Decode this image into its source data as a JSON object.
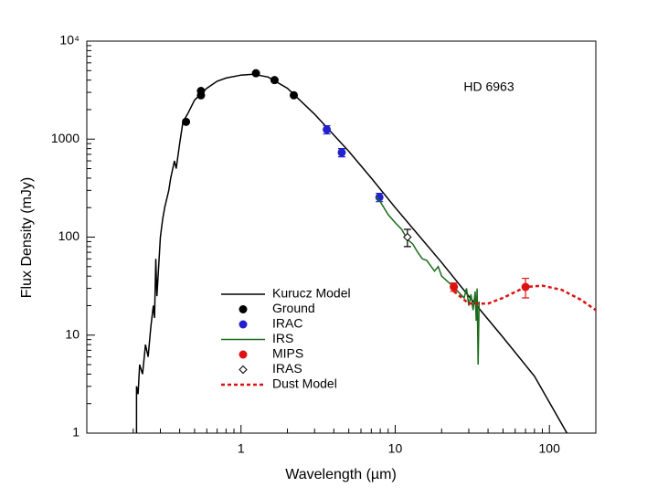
{
  "chart_data": {
    "type": "sed",
    "annotation": "HD 6963",
    "xlabel": "Wavelength (µm)",
    "ylabel": "Flux Density (mJy)",
    "xscale": "log",
    "yscale": "log",
    "xlim": [
      0.1,
      200
    ],
    "ylim": [
      1,
      10000
    ],
    "xticks": [
      1,
      10,
      100
    ],
    "yticks": [
      1,
      10,
      100,
      1000,
      {
        "value": 10000,
        "label": "10⁴"
      }
    ],
    "xminorticks": [
      0.2,
      0.3,
      0.4,
      0.5,
      0.6,
      0.7,
      0.8,
      0.9,
      2,
      3,
      4,
      5,
      6,
      7,
      8,
      9,
      20,
      30,
      40,
      50,
      60,
      70,
      80,
      90,
      200
    ],
    "yminorticks": [
      2,
      3,
      4,
      5,
      6,
      7,
      8,
      9,
      20,
      30,
      40,
      50,
      60,
      70,
      80,
      90,
      200,
      300,
      400,
      500,
      600,
      700,
      800,
      900,
      2000,
      3000,
      4000,
      5000,
      6000,
      7000,
      8000,
      9000
    ],
    "series": [
      {
        "name": "Kurucz Model",
        "color": "#000000",
        "style": "line",
        "x": [
          0.21,
          0.21,
          0.215,
          0.22,
          0.23,
          0.24,
          0.25,
          0.26,
          0.27,
          0.275,
          0.28,
          0.285,
          0.29,
          0.3,
          0.31,
          0.32,
          0.34,
          0.35,
          0.37,
          0.38,
          0.4,
          0.42,
          0.45,
          0.5,
          0.55,
          0.6,
          0.7,
          0.8,
          1,
          1.2,
          1.5,
          2,
          3,
          4,
          5,
          7,
          10,
          20,
          30,
          50,
          80,
          130
        ],
        "values": [
          1,
          3,
          2.5,
          5,
          4,
          8,
          6,
          12,
          20,
          15,
          60,
          25,
          40,
          100,
          150,
          200,
          300,
          400,
          600,
          500,
          900,
          1500,
          1800,
          2500,
          2900,
          3300,
          3900,
          4200,
          4500,
          4600,
          4300,
          3300,
          1800,
          1100,
          750,
          400,
          200,
          55,
          25,
          9.5,
          3.8,
          1
        ]
      },
      {
        "name": "Ground",
        "color": "#000000",
        "style": "points",
        "x": [
          0.44,
          0.55,
          0.55,
          1.25,
          1.65,
          2.2
        ],
        "values": [
          1500,
          2800,
          3100,
          4700,
          4000,
          2800
        ]
      },
      {
        "name": "IRAC",
        "color": "#2222cc",
        "style": "points",
        "x": [
          3.6,
          4.5,
          7.9
        ],
        "values": [
          1250,
          730,
          255
        ],
        "errors": [
          120,
          70,
          25
        ]
      },
      {
        "name": "IRS",
        "color": "#1a6b1a",
        "style": "line",
        "x": [
          7.5,
          8,
          9,
          10,
          11,
          12,
          13,
          14,
          15,
          16,
          18,
          19,
          20,
          22,
          24,
          26,
          28,
          29,
          30,
          31,
          32,
          33,
          33.5,
          34,
          34.5,
          35
        ],
        "values": [
          260,
          230,
          170,
          140,
          120,
          95,
          85,
          70,
          60,
          58,
          45,
          50,
          40,
          35,
          31,
          27,
          24,
          30,
          20,
          26,
          18,
          28,
          14,
          30,
          5,
          22
        ]
      },
      {
        "name": "MIPS",
        "color": "#dd1111",
        "style": "points",
        "x": [
          24,
          70
        ],
        "values": [
          31,
          31
        ],
        "errors": [
          3,
          7
        ]
      },
      {
        "name": "IRAS",
        "color": "#000000",
        "style": "open-diamond",
        "x": [
          12
        ],
        "values": [
          100
        ],
        "errors": [
          20
        ]
      },
      {
        "name": "Dust Model",
        "color": "#dd1111",
        "style": "dashed",
        "x": [
          24,
          30,
          40,
          50,
          70,
          90,
          120,
          160,
          200
        ],
        "values": [
          28,
          21,
          21,
          24,
          31,
          32,
          29,
          23,
          18
        ]
      }
    ]
  }
}
